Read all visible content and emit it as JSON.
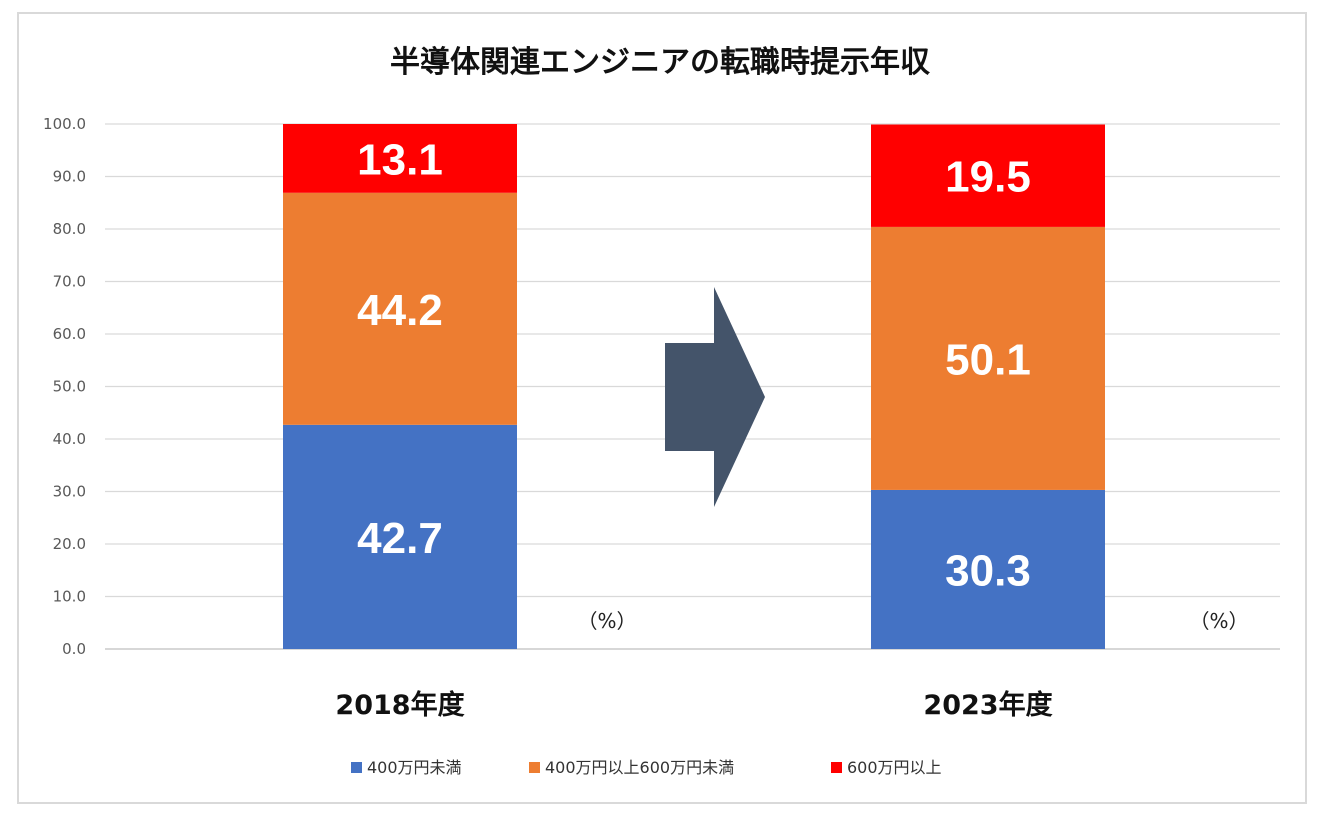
{
  "chart_data": {
    "type": "bar",
    "stacked": true,
    "title": "半導体関連エンジニアの転職時提示年収",
    "categories": [
      "2018年度",
      "2023年度"
    ],
    "series": [
      {
        "name": "400万円未満",
        "values": [
          42.7,
          30.3
        ],
        "color": "#4472c4"
      },
      {
        "name": "400万円以上600万円未満",
        "values": [
          44.2,
          50.1
        ],
        "color": "#ed7d31"
      },
      {
        "name": "600万円以上",
        "values": [
          13.1,
          19.5
        ],
        "color": "#ff0000"
      }
    ],
    "data_labels": [
      [
        "42.7",
        "30.3"
      ],
      [
        "44.2",
        "50.1"
      ],
      [
        "13.1",
        "19.5"
      ]
    ],
    "ylim": [
      0,
      100
    ],
    "yticks": [
      "0.0",
      "10.0",
      "20.0",
      "30.0",
      "40.0",
      "50.0",
      "60.0",
      "70.0",
      "80.0",
      "90.0",
      "100.0"
    ],
    "unit_label": "（%）",
    "grid": true,
    "legend": "bottom",
    "arrow_color": "#44546a"
  }
}
